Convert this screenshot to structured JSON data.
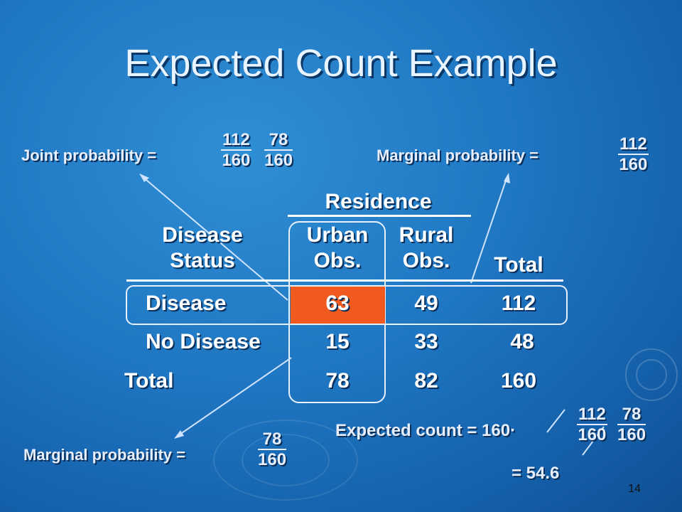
{
  "title": "Expected Count Example",
  "joint": {
    "label": "Joint probability =",
    "frac1": {
      "num": "112",
      "den": "160"
    },
    "frac2": {
      "num": "78",
      "den": "160"
    }
  },
  "marginal_top": {
    "label": "Marginal probability =",
    "frac": {
      "num": "112",
      "den": "160"
    }
  },
  "marginal_bottom": {
    "label": "Marginal probability =",
    "frac": {
      "num": "78",
      "den": "160"
    }
  },
  "expected": {
    "label": "Expected count = 160·",
    "frac1": {
      "num": "112",
      "den": "160"
    },
    "frac2": {
      "num": "78",
      "den": "160"
    },
    "result": "= 54.6"
  },
  "table": {
    "group_header": "Residence",
    "col_headers": {
      "status": [
        "Disease",
        "Status"
      ],
      "urban": [
        "Urban",
        "Obs."
      ],
      "rural": [
        "Rural",
        "Obs."
      ],
      "total": "Total"
    },
    "rows": [
      {
        "label": "Disease",
        "urban": "63",
        "rural": "49",
        "total": "112"
      },
      {
        "label": "No Disease",
        "urban": "15",
        "rural": "33",
        "total": "48"
      },
      {
        "label": "Total",
        "urban": "78",
        "rural": "82",
        "total": "160"
      }
    ],
    "highlight_color": "#f05a1e"
  },
  "slide_number": "14"
}
